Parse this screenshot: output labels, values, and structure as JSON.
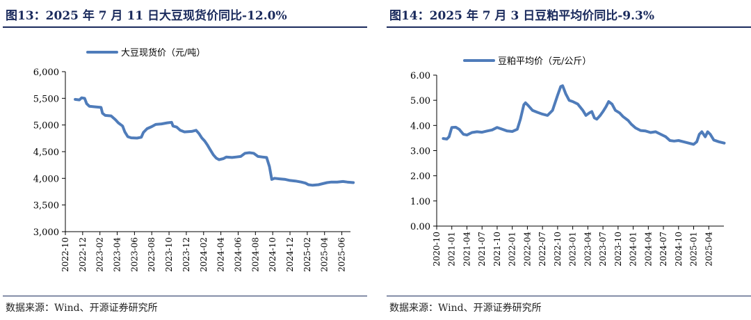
{
  "charts": [
    {
      "title": "图13：2025 年 7 月 11 日大豆现货价同比-12.0%",
      "source": "数据来源：Wind、开源证券研究所"
    },
    {
      "title": "图14：2025 年 7 月 3 日豆粕平均价同比-9.3%",
      "source": "数据来源：Wind、开源证券研究所"
    }
  ],
  "chart_data": [
    {
      "type": "line",
      "title": "",
      "xlabel": "",
      "ylabel": "",
      "ylim": [
        3000,
        6000
      ],
      "yticks": [
        3000,
        3500,
        4000,
        4500,
        5000,
        5500,
        6000
      ],
      "ytick_labels": [
        "3,000",
        "3,500",
        "4,000",
        "4,500",
        "5,000",
        "5,500",
        "6,000"
      ],
      "xlim": [
        "2022-10",
        "2025-07"
      ],
      "xtick_labels": [
        "2022-10",
        "2022-12",
        "2023-02",
        "2023-04",
        "2023-06",
        "2023-08",
        "2023-10",
        "2023-12",
        "2024-02",
        "2024-04",
        "2024-06",
        "2024-08",
        "2024-10",
        "2024-12",
        "2025-02",
        "2025-04",
        "2025-06"
      ],
      "legend_position": "top-center",
      "grid": false,
      "color": "#4f7cba",
      "series": [
        {
          "name": "大豆现货价（元/吨）",
          "points": [
            [
              "2022-11-05",
              5480
            ],
            [
              "2022-11-20",
              5470
            ],
            [
              "2022-11-28",
              5510
            ],
            [
              "2022-12-08",
              5500
            ],
            [
              "2022-12-15",
              5400
            ],
            [
              "2022-12-25",
              5350
            ],
            [
              "2023-01-15",
              5340
            ],
            [
              "2023-02-05",
              5330
            ],
            [
              "2023-02-10",
              5220
            ],
            [
              "2023-02-20",
              5180
            ],
            [
              "2023-03-10",
              5170
            ],
            [
              "2023-03-25",
              5100
            ],
            [
              "2023-04-05",
              5040
            ],
            [
              "2023-04-20",
              4980
            ],
            [
              "2023-04-28",
              4870
            ],
            [
              "2023-05-08",
              4780
            ],
            [
              "2023-05-20",
              4760
            ],
            [
              "2023-06-10",
              4755
            ],
            [
              "2023-06-25",
              4770
            ],
            [
              "2023-07-02",
              4860
            ],
            [
              "2023-07-15",
              4930
            ],
            [
              "2023-08-01",
              4970
            ],
            [
              "2023-08-15",
              5010
            ],
            [
              "2023-09-05",
              5020
            ],
            [
              "2023-09-25",
              5040
            ],
            [
              "2023-10-10",
              5050
            ],
            [
              "2023-10-15",
              4980
            ],
            [
              "2023-10-28",
              4960
            ],
            [
              "2023-11-10",
              4900
            ],
            [
              "2023-11-25",
              4870
            ],
            [
              "2023-12-20",
              4880
            ],
            [
              "2024-01-05",
              4900
            ],
            [
              "2024-01-15",
              4840
            ],
            [
              "2024-01-25",
              4760
            ],
            [
              "2024-02-05",
              4700
            ],
            [
              "2024-02-15",
              4620
            ],
            [
              "2024-02-25",
              4530
            ],
            [
              "2024-03-05",
              4440
            ],
            [
              "2024-03-15",
              4380
            ],
            [
              "2024-03-25",
              4350
            ],
            [
              "2024-04-10",
              4370
            ],
            [
              "2024-04-20",
              4400
            ],
            [
              "2024-05-10",
              4390
            ],
            [
              "2024-05-25",
              4400
            ],
            [
              "2024-06-10",
              4410
            ],
            [
              "2024-06-25",
              4470
            ],
            [
              "2024-07-10",
              4480
            ],
            [
              "2024-07-25",
              4470
            ],
            [
              "2024-08-10",
              4410
            ],
            [
              "2024-08-25",
              4400
            ],
            [
              "2024-09-10",
              4390
            ],
            [
              "2024-09-20",
              4220
            ],
            [
              "2024-09-28",
              3980
            ],
            [
              "2024-10-08",
              4000
            ],
            [
              "2024-10-25",
              3990
            ],
            [
              "2024-11-15",
              3980
            ],
            [
              "2024-12-01",
              3960
            ],
            [
              "2024-12-20",
              3950
            ],
            [
              "2025-01-10",
              3930
            ],
            [
              "2025-01-25",
              3910
            ],
            [
              "2025-02-05",
              3880
            ],
            [
              "2025-02-20",
              3870
            ],
            [
              "2025-03-10",
              3880
            ],
            [
              "2025-03-25",
              3900
            ],
            [
              "2025-04-10",
              3920
            ],
            [
              "2025-04-25",
              3930
            ],
            [
              "2025-05-15",
              3930
            ],
            [
              "2025-06-05",
              3940
            ],
            [
              "2025-06-20",
              3930
            ],
            [
              "2025-07-11",
              3920
            ]
          ]
        }
      ]
    },
    {
      "type": "line",
      "title": "",
      "xlabel": "",
      "ylabel": "",
      "ylim": [
        0,
        6
      ],
      "yticks": [
        0,
        1,
        2,
        3,
        4,
        5,
        6
      ],
      "ytick_labels": [
        "0.00",
        "1.00",
        "2.00",
        "3.00",
        "4.00",
        "5.00",
        "6.00"
      ],
      "xlim": [
        "2020-10",
        "2025-07"
      ],
      "xtick_labels": [
        "2020-10",
        "2021-01",
        "2021-04",
        "2021-07",
        "2021-10",
        "2022-01",
        "2022-04",
        "2022-07",
        "2022-10",
        "2023-01",
        "2023-04",
        "2023-07",
        "2023-10",
        "2024-01",
        "2024-04",
        "2024-07",
        "2024-10",
        "2025-01",
        "2025-04"
      ],
      "legend_position": "top-center",
      "grid": false,
      "color": "#4f7cba",
      "series": [
        {
          "name": "豆粕平均价（元/公斤）",
          "points": [
            [
              "2020-11-10",
              3.48
            ],
            [
              "2020-12-01",
              3.46
            ],
            [
              "2020-12-15",
              3.55
            ],
            [
              "2021-01-01",
              3.92
            ],
            [
              "2021-01-25",
              3.93
            ],
            [
              "2021-02-15",
              3.85
            ],
            [
              "2021-03-10",
              3.65
            ],
            [
              "2021-04-01",
              3.62
            ],
            [
              "2021-05-01",
              3.72
            ],
            [
              "2021-06-01",
              3.75
            ],
            [
              "2021-07-01",
              3.73
            ],
            [
              "2021-08-01",
              3.78
            ],
            [
              "2021-09-01",
              3.82
            ],
            [
              "2021-10-01",
              3.92
            ],
            [
              "2021-11-01",
              3.85
            ],
            [
              "2021-12-01",
              3.78
            ],
            [
              "2022-01-01",
              3.76
            ],
            [
              "2022-02-01",
              3.85
            ],
            [
              "2022-02-20",
              4.25
            ],
            [
              "2022-03-10",
              4.82
            ],
            [
              "2022-03-20",
              4.9
            ],
            [
              "2022-04-05",
              4.8
            ],
            [
              "2022-05-01",
              4.6
            ],
            [
              "2022-06-01",
              4.52
            ],
            [
              "2022-07-01",
              4.45
            ],
            [
              "2022-08-01",
              4.4
            ],
            [
              "2022-09-01",
              4.6
            ],
            [
              "2022-10-01",
              5.2
            ],
            [
              "2022-10-20",
              5.55
            ],
            [
              "2022-11-01",
              5.58
            ],
            [
              "2022-11-20",
              5.25
            ],
            [
              "2022-12-10",
              5.0
            ],
            [
              "2023-01-01",
              4.95
            ],
            [
              "2023-02-01",
              4.85
            ],
            [
              "2023-03-01",
              4.6
            ],
            [
              "2023-03-20",
              4.4
            ],
            [
              "2023-04-10",
              4.5
            ],
            [
              "2023-04-25",
              4.55
            ],
            [
              "2023-05-10",
              4.3
            ],
            [
              "2023-05-25",
              4.25
            ],
            [
              "2023-06-15",
              4.4
            ],
            [
              "2023-07-01",
              4.55
            ],
            [
              "2023-07-20",
              4.75
            ],
            [
              "2023-08-05",
              4.95
            ],
            [
              "2023-08-25",
              4.85
            ],
            [
              "2023-09-15",
              4.6
            ],
            [
              "2023-10-10",
              4.5
            ],
            [
              "2023-11-01",
              4.35
            ],
            [
              "2023-12-01",
              4.2
            ],
            [
              "2023-12-20",
              4.05
            ],
            [
              "2024-01-15",
              3.9
            ],
            [
              "2024-02-15",
              3.8
            ],
            [
              "2024-03-15",
              3.78
            ],
            [
              "2024-04-15",
              3.72
            ],
            [
              "2024-05-15",
              3.75
            ],
            [
              "2024-06-15",
              3.65
            ],
            [
              "2024-07-15",
              3.55
            ],
            [
              "2024-08-10",
              3.4
            ],
            [
              "2024-09-05",
              3.38
            ],
            [
              "2024-10-01",
              3.4
            ],
            [
              "2024-11-01",
              3.35
            ],
            [
              "2024-12-01",
              3.3
            ],
            [
              "2025-01-01",
              3.25
            ],
            [
              "2025-01-20",
              3.35
            ],
            [
              "2025-02-05",
              3.65
            ],
            [
              "2025-02-20",
              3.75
            ],
            [
              "2025-03-10",
              3.55
            ],
            [
              "2025-03-25",
              3.75
            ],
            [
              "2025-04-10",
              3.65
            ],
            [
              "2025-05-01",
              3.42
            ],
            [
              "2025-06-01",
              3.35
            ],
            [
              "2025-07-03",
              3.3
            ]
          ]
        }
      ]
    }
  ]
}
